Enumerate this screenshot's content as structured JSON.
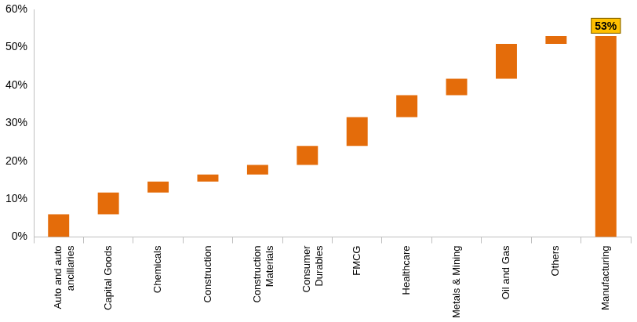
{
  "chart_data": {
    "type": "waterfall",
    "categories": [
      "Auto and auto ancillaries",
      "Capital Goods",
      "Chemicals",
      "Construction",
      "Construction Materials",
      "Consumer Durables",
      "FMCG",
      "Healthcare",
      "Metals & Mining",
      "Oil and Gas",
      "Others",
      "Manufacturing"
    ],
    "values": [
      6,
      5.7,
      2.9,
      1.9,
      2.5,
      5,
      7.6,
      5.8,
      4.3,
      9.2,
      2.1,
      53
    ],
    "is_total": [
      false,
      false,
      false,
      false,
      false,
      false,
      false,
      false,
      false,
      false,
      false,
      true
    ],
    "value_labels": [
      null,
      null,
      null,
      null,
      null,
      null,
      null,
      null,
      null,
      null,
      null,
      "53%"
    ],
    "color": "#e46c0a",
    "ylim": [
      0,
      60
    ],
    "yticks": [
      {
        "value": 0,
        "label": "0%"
      },
      {
        "value": 10,
        "label": "10%"
      },
      {
        "value": 20,
        "label": "20%"
      },
      {
        "value": 30,
        "label": "30%"
      },
      {
        "value": 40,
        "label": "40%"
      },
      {
        "value": 50,
        "label": "50%"
      },
      {
        "value": 60,
        "label": "60%"
      }
    ],
    "grid": false
  }
}
